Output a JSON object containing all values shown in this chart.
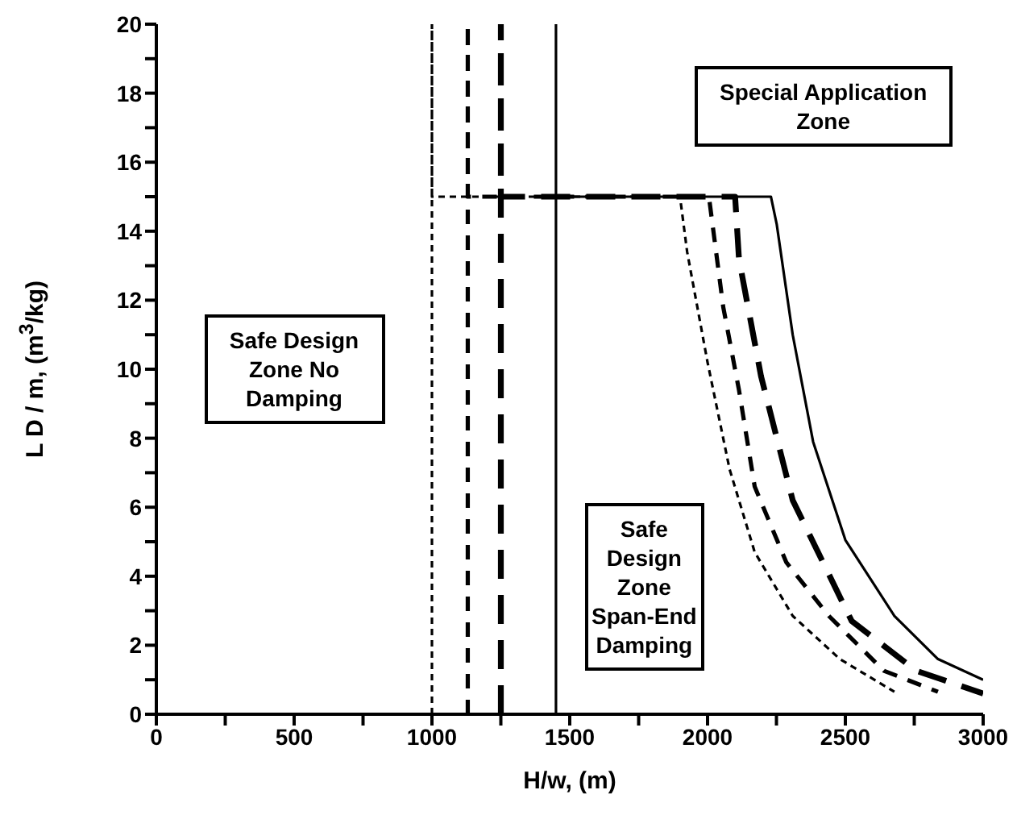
{
  "chart_data": {
    "type": "line",
    "xlabel": "H/w, (m)",
    "ylabel": "L D / m, (m$^{3}$/kg)",
    "xlim": [
      0,
      3000
    ],
    "ylim": [
      0,
      20
    ],
    "xticks": [
      0,
      {
        "value": 250,
        "label": null
      },
      500,
      {
        "value": 750,
        "label": null
      },
      1000,
      {
        "value": 1250,
        "label": null
      },
      1500,
      {
        "value": 1750,
        "label": null
      },
      2000,
      {
        "value": 2250,
        "label": null
      },
      2500,
      {
        "value": 2750,
        "label": null
      },
      3000
    ],
    "yticks": [
      0,
      {
        "value": 1,
        "label": null
      },
      2,
      {
        "value": 3,
        "label": null
      },
      4,
      {
        "value": 5,
        "label": null
      },
      6,
      {
        "value": 7,
        "label": null
      },
      8,
      {
        "value": 9,
        "label": null
      },
      10,
      {
        "value": 11,
        "label": null
      },
      12,
      {
        "value": 13,
        "label": null
      },
      14,
      {
        "value": 15,
        "label": null
      },
      16,
      {
        "value": 17,
        "label": null
      },
      18,
      {
        "value": 19,
        "label": null
      },
      20
    ],
    "marker": "none",
    "annotations": [
      "Safe Design Zone No Damping",
      "Special Application Zone",
      "Safe Design Zone Span-End Damping"
    ],
    "series": [
      {
        "color": "#000000",
        "line_style": "dotted",
        "x": [
          1000,
          1000,
          1000,
          1900,
          1926,
          2000,
          2080,
          2171,
          2309,
          2480,
          2678
        ],
        "values": [
          0,
          20,
          15,
          15,
          13.4,
          10.2,
          7.1,
          4.7,
          2.85,
          1.6,
          0.65
        ]
      },
      {
        "color": "#000000",
        "line_style": "dashed",
        "x": [
          1130,
          1130,
          1130,
          2005,
          2057,
          2114,
          2171,
          2286,
          2440,
          2640,
          2836
        ],
        "values": [
          0,
          20,
          15,
          15,
          11.8,
          9.4,
          6.6,
          4.4,
          2.85,
          1.26,
          0.65
        ]
      },
      {
        "color": "#000000",
        "line_style": "dashed",
        "x": [
          1250,
          1250,
          1250,
          2100,
          2114,
          2194,
          2309,
          2523,
          2757,
          3000
        ],
        "values": [
          0,
          20,
          15,
          15,
          13.2,
          9.8,
          6.2,
          2.7,
          1.26,
          0.6
        ]
      },
      {
        "color": "#000000",
        "line_style": "solid",
        "x": [
          1450,
          1450,
          1450,
          2230,
          2251,
          2309,
          2383,
          2500,
          2678,
          2836,
          3000
        ],
        "values": [
          0,
          20,
          15,
          15,
          14.2,
          11.0,
          7.9,
          5.05,
          2.85,
          1.6,
          1.0
        ]
      }
    ]
  }
}
